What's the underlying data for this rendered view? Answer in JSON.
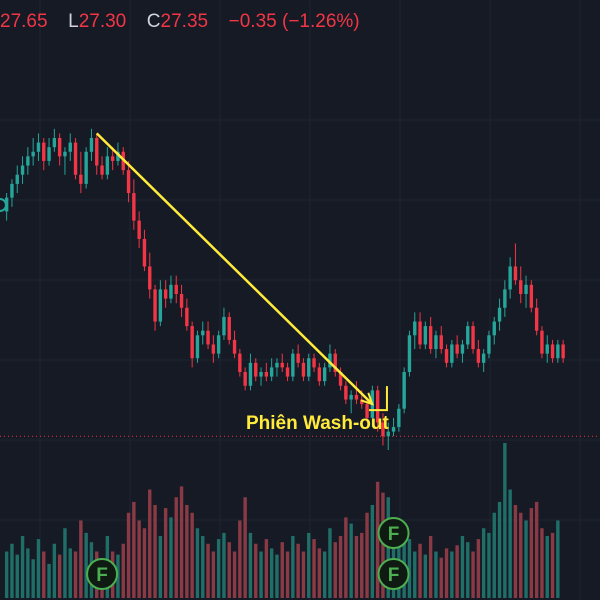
{
  "header": {
    "open_value": "27.65",
    "low_key": "L",
    "low_value": "27.30",
    "close_key": "C",
    "close_value": "27.35",
    "change": "−0.35 (−1.26%)"
  },
  "colors": {
    "background": "#161a25",
    "up": "#26a69a",
    "down": "#f23645",
    "volume_up": "#1f6f68",
    "volume_down": "#8a3a45",
    "trend_line": "#ffeb3b",
    "annotation": "#ffeb3b",
    "grid": "#1f2433",
    "price_line": "#f23645",
    "event_marker": "#4caf50"
  },
  "chart_data": {
    "type": "candlestick",
    "annotation": "Phiên Wash-out",
    "event_marker_label": "F",
    "price_min": 22.0,
    "price_max": 30.5,
    "current_price_line": 22.3,
    "trend_line": {
      "start": {
        "bar": 17,
        "price": 28.9
      },
      "end": {
        "bar": 69,
        "price": 23.0
      }
    },
    "event_markers": [
      {
        "bar": 18,
        "tier": 1
      },
      {
        "bar": 73,
        "tier": 1
      },
      {
        "bar": 73,
        "tier": 2
      }
    ],
    "candles": [
      [
        27.2,
        27.6,
        27.0,
        27.5
      ],
      [
        27.5,
        27.9,
        27.3,
        27.8
      ],
      [
        27.8,
        28.2,
        27.6,
        28.0
      ],
      [
        28.0,
        28.4,
        27.8,
        28.2
      ],
      [
        28.2,
        28.6,
        28.0,
        28.4
      ],
      [
        28.4,
        28.8,
        28.2,
        28.5
      ],
      [
        28.5,
        28.9,
        28.3,
        28.7
      ],
      [
        28.7,
        28.8,
        28.1,
        28.3
      ],
      [
        28.3,
        28.8,
        28.2,
        28.6
      ],
      [
        28.6,
        29.0,
        28.5,
        28.8
      ],
      [
        28.8,
        28.9,
        28.2,
        28.4
      ],
      [
        28.4,
        28.6,
        28.0,
        28.5
      ],
      [
        28.5,
        28.9,
        28.3,
        28.7
      ],
      [
        28.7,
        28.8,
        27.9,
        28.0
      ],
      [
        28.0,
        28.5,
        27.6,
        27.8
      ],
      [
        27.8,
        28.6,
        27.7,
        28.5
      ],
      [
        28.5,
        29.0,
        28.3,
        28.8
      ],
      [
        28.8,
        28.9,
        28.0,
        28.2
      ],
      [
        28.2,
        28.4,
        27.9,
        28.0
      ],
      [
        28.0,
        28.6,
        27.9,
        28.4
      ],
      [
        28.4,
        28.6,
        28.1,
        28.3
      ],
      [
        28.3,
        28.7,
        28.2,
        28.5
      ],
      [
        28.5,
        28.6,
        28.0,
        28.1
      ],
      [
        28.1,
        28.3,
        27.4,
        27.6
      ],
      [
        27.6,
        27.9,
        26.8,
        27.0
      ],
      [
        27.0,
        27.2,
        26.4,
        26.6
      ],
      [
        26.6,
        26.8,
        25.9,
        26.0
      ],
      [
        26.0,
        26.3,
        25.3,
        25.5
      ],
      [
        25.5,
        25.6,
        24.6,
        24.8
      ],
      [
        24.8,
        25.7,
        24.7,
        25.5
      ],
      [
        25.5,
        25.7,
        25.1,
        25.3
      ],
      [
        25.3,
        25.8,
        25.2,
        25.6
      ],
      [
        25.6,
        25.8,
        25.2,
        25.4
      ],
      [
        25.4,
        25.6,
        24.9,
        25.1
      ],
      [
        25.1,
        25.3,
        24.6,
        24.7
      ],
      [
        24.7,
        24.8,
        23.8,
        24.0
      ],
      [
        24.0,
        24.6,
        23.9,
        24.5
      ],
      [
        24.5,
        24.8,
        24.3,
        24.6
      ],
      [
        24.6,
        24.8,
        24.2,
        24.3
      ],
      [
        24.3,
        24.5,
        23.9,
        24.1
      ],
      [
        24.1,
        24.6,
        24.0,
        24.5
      ],
      [
        24.5,
        25.1,
        24.4,
        24.9
      ],
      [
        24.9,
        25.0,
        24.3,
        24.4
      ],
      [
        24.4,
        24.6,
        24.0,
        24.1
      ],
      [
        24.1,
        24.2,
        23.6,
        23.7
      ],
      [
        23.7,
        23.8,
        23.3,
        23.4
      ],
      [
        23.4,
        24.1,
        23.3,
        23.9
      ],
      [
        23.9,
        24.0,
        23.5,
        23.6
      ],
      [
        23.6,
        23.8,
        23.4,
        23.7
      ],
      [
        23.7,
        23.9,
        23.5,
        23.6
      ],
      [
        23.6,
        24.0,
        23.5,
        23.8
      ],
      [
        23.8,
        24.0,
        23.6,
        23.9
      ],
      [
        23.9,
        24.1,
        23.7,
        23.8
      ],
      [
        23.8,
        23.9,
        23.5,
        23.6
      ],
      [
        23.6,
        24.2,
        23.5,
        24.1
      ],
      [
        24.1,
        24.3,
        23.8,
        23.9
      ],
      [
        23.9,
        24.0,
        23.5,
        23.6
      ],
      [
        23.6,
        24.1,
        23.5,
        24.0
      ],
      [
        24.0,
        24.1,
        23.7,
        23.8
      ],
      [
        23.8,
        23.9,
        23.4,
        23.5
      ],
      [
        23.5,
        23.9,
        23.4,
        23.8
      ],
      [
        23.8,
        24.3,
        23.7,
        24.1
      ],
      [
        24.1,
        24.2,
        23.6,
        23.7
      ],
      [
        23.7,
        23.8,
        23.3,
        23.4
      ],
      [
        23.4,
        23.5,
        23.0,
        23.1
      ],
      [
        23.1,
        23.3,
        22.8,
        23.2
      ],
      [
        23.2,
        23.5,
        23.0,
        23.1
      ],
      [
        23.1,
        23.3,
        22.9,
        23.0
      ],
      [
        23.0,
        23.1,
        22.6,
        22.7
      ],
      [
        22.7,
        23.4,
        22.5,
        23.3
      ],
      [
        23.3,
        23.4,
        22.4,
        22.6
      ],
      [
        22.6,
        22.8,
        22.1,
        22.3
      ],
      [
        22.3,
        22.6,
        22.0,
        22.4
      ],
      [
        22.4,
        22.7,
        22.3,
        22.5
      ],
      [
        22.5,
        23.0,
        22.4,
        22.9
      ],
      [
        22.9,
        23.8,
        22.8,
        23.7
      ],
      [
        23.7,
        24.6,
        23.6,
        24.5
      ],
      [
        24.5,
        25.0,
        24.2,
        24.8
      ],
      [
        24.8,
        25.0,
        24.2,
        24.3
      ],
      [
        24.3,
        24.8,
        24.2,
        24.7
      ],
      [
        24.7,
        24.9,
        24.1,
        24.2
      ],
      [
        24.2,
        24.6,
        24.0,
        24.5
      ],
      [
        24.5,
        24.7,
        24.1,
        24.2
      ],
      [
        24.2,
        24.3,
        23.8,
        23.9
      ],
      [
        23.9,
        24.4,
        23.8,
        24.3
      ],
      [
        24.3,
        24.5,
        24.0,
        24.1
      ],
      [
        24.1,
        24.4,
        23.9,
        24.3
      ],
      [
        24.3,
        24.8,
        24.2,
        24.7
      ],
      [
        24.7,
        24.8,
        24.1,
        24.2
      ],
      [
        24.2,
        24.4,
        23.8,
        23.9
      ],
      [
        23.9,
        24.2,
        23.7,
        24.1
      ],
      [
        24.1,
        24.6,
        24.0,
        24.5
      ],
      [
        24.5,
        24.9,
        24.3,
        24.8
      ],
      [
        24.8,
        25.3,
        24.6,
        25.1
      ],
      [
        25.1,
        25.7,
        24.9,
        25.5
      ],
      [
        25.5,
        26.2,
        25.3,
        26.0
      ],
      [
        26.0,
        26.5,
        25.6,
        25.7
      ],
      [
        25.7,
        26.0,
        25.2,
        25.4
      ],
      [
        25.4,
        25.8,
        25.1,
        25.6
      ],
      [
        25.6,
        25.7,
        25.0,
        25.1
      ],
      [
        25.1,
        25.3,
        24.5,
        24.6
      ],
      [
        24.6,
        24.7,
        24.0,
        24.1
      ],
      [
        24.1,
        24.5,
        23.9,
        24.3
      ],
      [
        24.3,
        24.4,
        23.9,
        24.0
      ],
      [
        24.0,
        24.4,
        23.9,
        24.3
      ],
      [
        24.3,
        24.4,
        23.9,
        24.0
      ]
    ],
    "volumes": [
      0.3,
      0.35,
      0.28,
      0.4,
      0.32,
      0.25,
      0.38,
      0.3,
      0.22,
      0.35,
      0.28,
      0.45,
      0.32,
      0.3,
      0.5,
      0.42,
      0.36,
      0.3,
      0.25,
      0.4,
      0.3,
      0.28,
      0.35,
      0.55,
      0.62,
      0.5,
      0.45,
      0.7,
      0.6,
      0.4,
      0.58,
      0.52,
      0.65,
      0.72,
      0.6,
      0.55,
      0.45,
      0.4,
      0.35,
      0.3,
      0.38,
      0.42,
      0.36,
      0.3,
      0.5,
      0.65,
      0.42,
      0.35,
      0.3,
      0.38,
      0.32,
      0.28,
      0.36,
      0.3,
      0.4,
      0.35,
      0.3,
      0.42,
      0.38,
      0.32,
      0.3,
      0.45,
      0.36,
      0.4,
      0.52,
      0.48,
      0.4,
      0.42,
      0.55,
      0.6,
      0.75,
      0.68,
      0.65,
      0.5,
      0.4,
      0.45,
      0.38,
      0.3,
      0.35,
      0.28,
      0.4,
      0.3,
      0.26,
      0.32,
      0.3,
      0.34,
      0.4,
      0.36,
      0.3,
      0.38,
      0.45,
      0.42,
      0.55,
      0.62,
      1.0,
      0.7,
      0.6,
      0.55,
      0.5,
      0.58,
      0.62,
      0.45,
      0.4,
      0.42,
      0.5
    ]
  }
}
